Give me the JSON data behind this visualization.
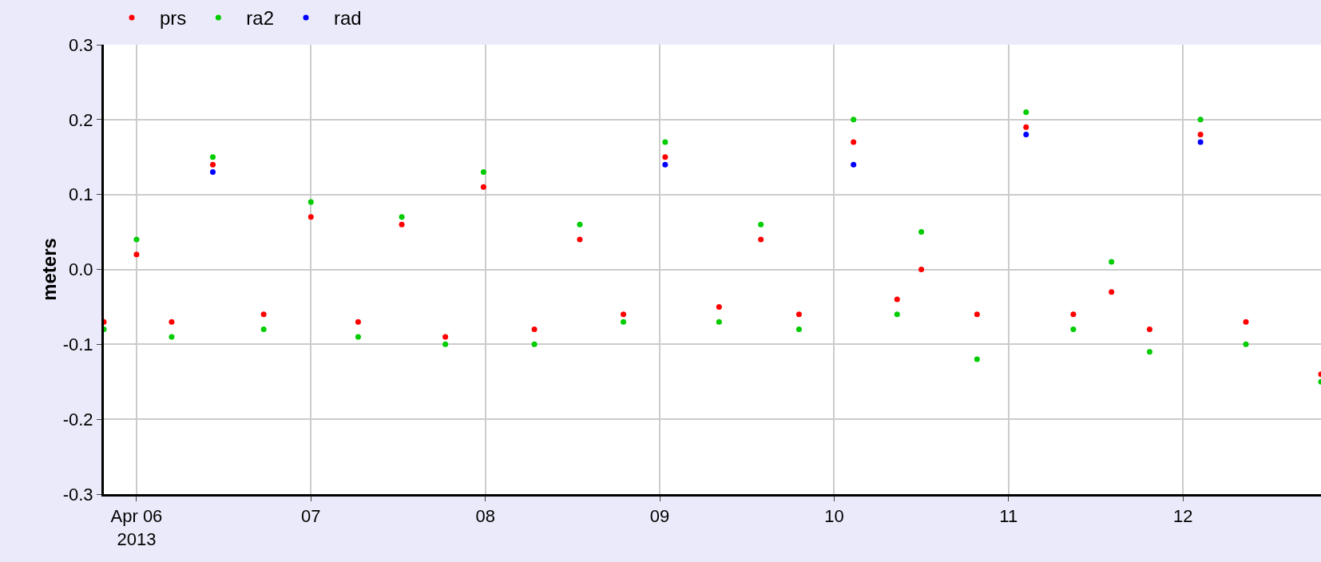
{
  "chart_data": {
    "type": "scatter",
    "ylabel": "meters",
    "marker": "circle",
    "grid": true,
    "legend": "top left",
    "xlim": [
      "2013-04-05T19:30",
      "2013-04-12T19:00"
    ],
    "xticks": [
      {
        "value": "2013-04-06",
        "label": "Apr 06\n2013"
      },
      {
        "value": "2013-04-07",
        "label": "07"
      },
      {
        "value": "2013-04-08",
        "label": "08"
      },
      {
        "value": "2013-04-09",
        "label": "09"
      },
      {
        "value": "2013-04-10",
        "label": "10"
      },
      {
        "value": "2013-04-11",
        "label": "11"
      },
      {
        "value": "2013-04-12",
        "label": "12"
      }
    ],
    "ylim": [
      -0.3,
      0.3
    ],
    "yticks": [
      {
        "value": -0.3,
        "label": "-0.3"
      },
      {
        "value": -0.2,
        "label": "-0.2"
      },
      {
        "value": -0.1,
        "label": "-0.1"
      },
      {
        "value": 0,
        "label": "0.0"
      },
      {
        "value": 0.1,
        "label": "0.1"
      },
      {
        "value": 0.2,
        "label": "0.2"
      },
      {
        "value": 0.3,
        "label": "0.3"
      }
    ],
    "series": [
      {
        "name": "prs",
        "color": "#ff0000",
        "x": [
          "2013-04-05T19:30",
          "2013-04-06T00:00",
          "2013-04-06T04:50",
          "2013-04-06T10:30",
          "2013-04-06T17:30",
          "2013-04-07T00:00",
          "2013-04-07T06:30",
          "2013-04-07T12:30",
          "2013-04-07T18:30",
          "2013-04-07T23:45",
          "2013-04-08T06:45",
          "2013-04-08T13:00",
          "2013-04-08T19:00",
          "2013-04-09T00:45",
          "2013-04-09T08:10",
          "2013-04-09T13:55",
          "2013-04-09T19:10",
          "2013-04-10T02:40",
          "2013-04-10T08:40",
          "2013-04-10T12:00",
          "2013-04-10T19:40",
          "2013-04-11T02:25",
          "2013-04-11T08:55",
          "2013-04-11T14:10",
          "2013-04-11T19:25",
          "2013-04-12T02:25",
          "2013-04-12T08:40",
          "2013-04-12T19:00"
        ],
        "values": [
          -0.07,
          0.02,
          -0.07,
          0.14,
          -0.06,
          0.07,
          -0.07,
          0.06,
          -0.09,
          0.11,
          -0.08,
          0.04,
          -0.06,
          0.15,
          -0.05,
          0.04,
          -0.06,
          0.17,
          -0.04,
          0.0,
          -0.06,
          0.19,
          -0.06,
          -0.03,
          -0.08,
          0.18,
          -0.07,
          -0.14
        ]
      },
      {
        "name": "ra2",
        "color": "#00cc00",
        "x": [
          "2013-04-05T19:30",
          "2013-04-06T00:00",
          "2013-04-06T04:50",
          "2013-04-06T10:30",
          "2013-04-06T17:30",
          "2013-04-07T00:00",
          "2013-04-07T06:30",
          "2013-04-07T12:30",
          "2013-04-07T18:30",
          "2013-04-07T23:45",
          "2013-04-08T06:45",
          "2013-04-08T13:00",
          "2013-04-08T19:00",
          "2013-04-09T00:45",
          "2013-04-09T08:10",
          "2013-04-09T13:55",
          "2013-04-09T19:10",
          "2013-04-10T02:40",
          "2013-04-10T08:40",
          "2013-04-10T12:00",
          "2013-04-10T19:40",
          "2013-04-11T02:25",
          "2013-04-11T08:55",
          "2013-04-11T14:10",
          "2013-04-11T19:25",
          "2013-04-12T02:25",
          "2013-04-12T08:40",
          "2013-04-12T19:00"
        ],
        "values": [
          -0.08,
          0.04,
          -0.09,
          0.15,
          -0.08,
          0.09,
          -0.09,
          0.07,
          -0.1,
          0.13,
          -0.1,
          0.06,
          -0.07,
          0.17,
          -0.07,
          0.06,
          -0.08,
          0.2,
          -0.06,
          0.05,
          -0.12,
          0.21,
          -0.08,
          0.01,
          -0.11,
          0.2,
          -0.1,
          -0.15
        ]
      },
      {
        "name": "rad",
        "color": "#0000ff",
        "x": [
          "2013-04-06T10:30",
          "2013-04-09T00:45",
          "2013-04-10T02:40",
          "2013-04-11T02:25",
          "2013-04-12T02:25"
        ],
        "values": [
          0.13,
          0.14,
          0.14,
          0.18,
          0.17
        ]
      }
    ]
  }
}
